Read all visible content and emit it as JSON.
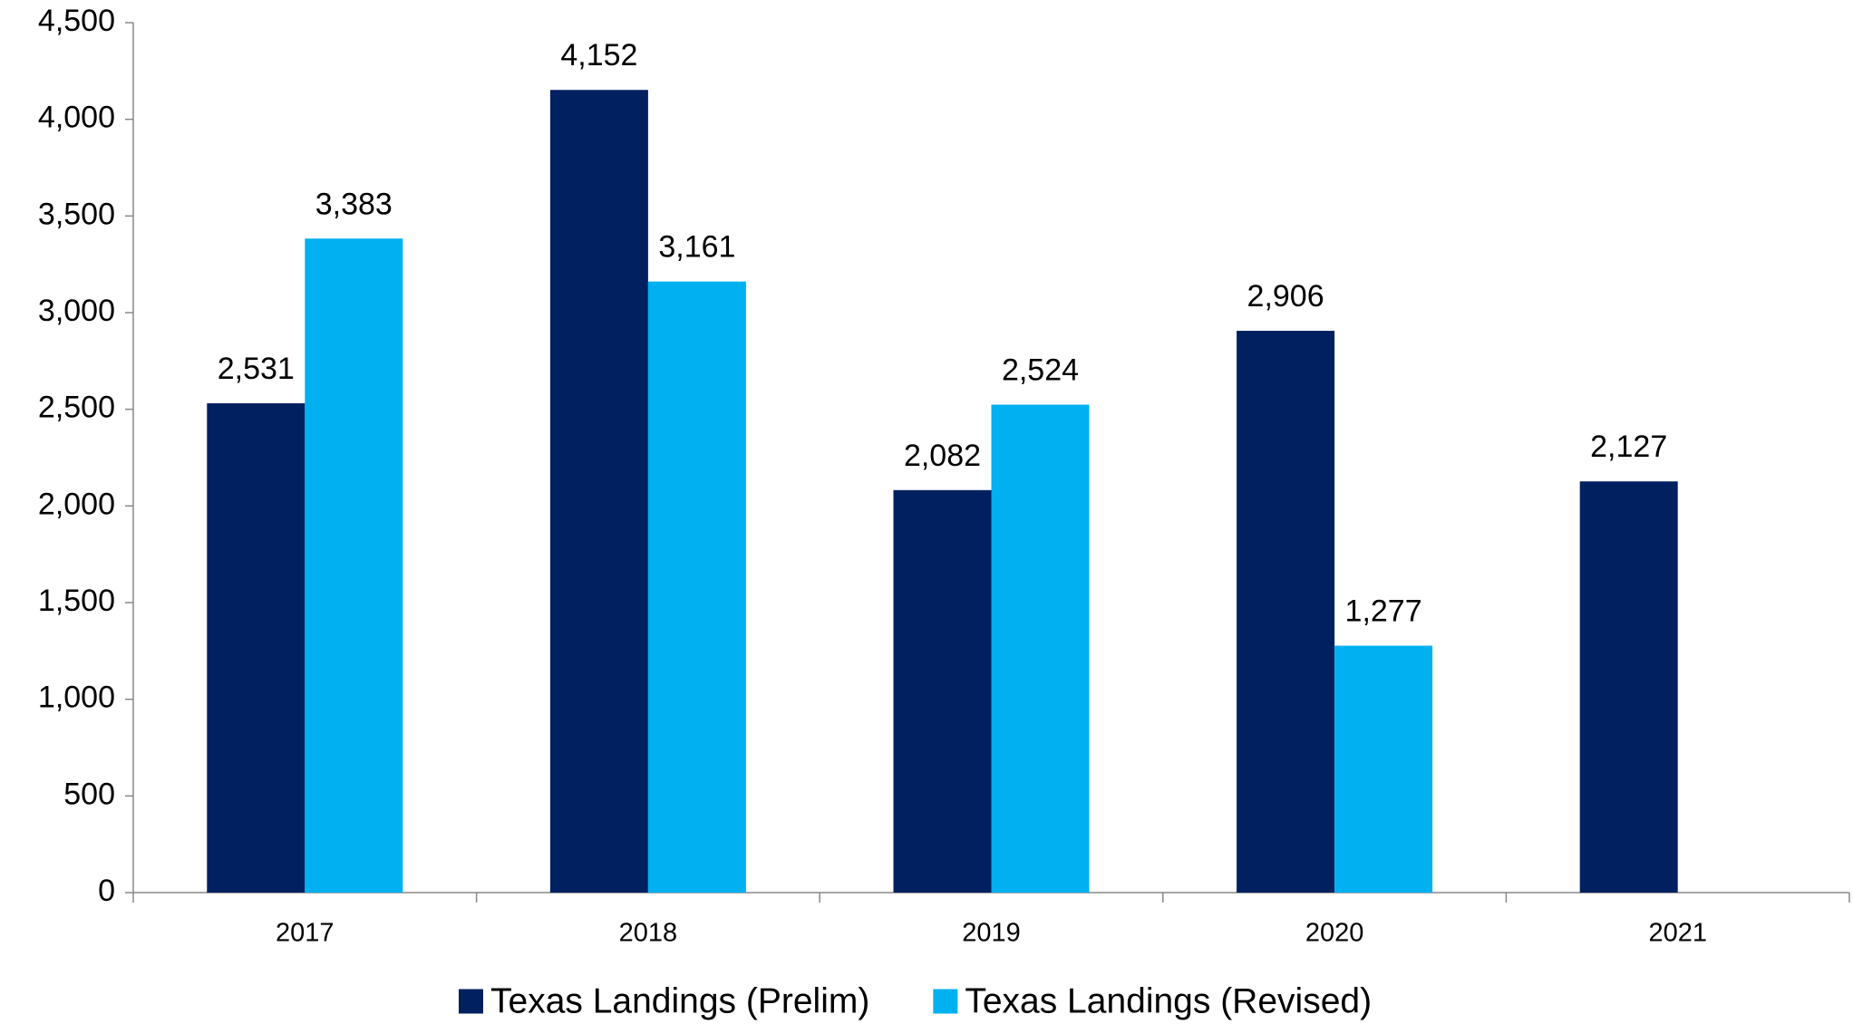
{
  "chart_data": {
    "type": "bar",
    "categories": [
      "2017",
      "2018",
      "2019",
      "2020",
      "2021"
    ],
    "series": [
      {
        "name": "Texas Landings (Prelim)",
        "color": "#002060",
        "values": [
          2531,
          4152,
          2082,
          2906,
          2127
        ],
        "value_labels": [
          "2,531",
          "4,152",
          "2,082",
          "2,906",
          "2,127"
        ]
      },
      {
        "name": "Texas Landings (Revised)",
        "color": "#00B0F0",
        "values": [
          3383,
          3161,
          2524,
          1277,
          null
        ],
        "value_labels": [
          "3,383",
          "3,161",
          "2,524",
          "1,277",
          null
        ]
      }
    ],
    "ylim": [
      0,
      4500
    ],
    "yticks": [
      0,
      500,
      {
        "value": 1000,
        "label": "1,000"
      },
      {
        "value": 1500,
        "label": "1,500"
      },
      {
        "value": 2000,
        "label": "2,000"
      },
      {
        "value": 2500,
        "label": "2,500"
      },
      {
        "value": 3000,
        "label": "3,000"
      },
      {
        "value": 3500,
        "label": "3,500"
      },
      {
        "value": 4000,
        "label": "4,000"
      },
      {
        "value": 4500,
        "label": "4,500"
      }
    ],
    "grid": false,
    "legend": "bottom"
  }
}
